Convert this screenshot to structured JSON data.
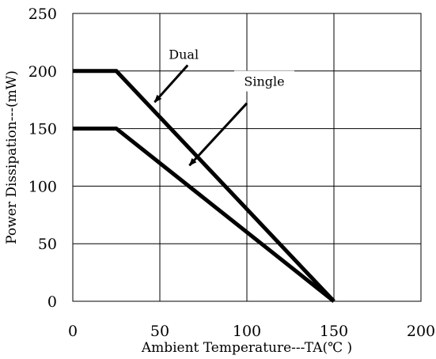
{
  "chart_data": {
    "type": "line",
    "title": "",
    "xlabel": "Ambient Temperature---TA(℃ )",
    "ylabel": "Power Dissipation---(mW)",
    "xlim": [
      0,
      200
    ],
    "ylim": [
      0,
      250
    ],
    "x_ticks": [
      "0",
      "50",
      "100",
      "150",
      "200"
    ],
    "y_ticks": [
      "0",
      "50",
      "100",
      "150",
      "200",
      "250"
    ],
    "grid": true,
    "legend": "none",
    "series": [
      {
        "name": "Dual",
        "points": [
          [
            0,
            200
          ],
          [
            25,
            200
          ],
          [
            150,
            0
          ]
        ]
      },
      {
        "name": "Single",
        "points": [
          [
            0,
            150
          ],
          [
            25,
            150
          ],
          [
            150,
            0
          ]
        ]
      }
    ],
    "annotations": [
      {
        "text": "Dual",
        "arrow_tail": [
          66,
          205
        ],
        "arrow_head": [
          47,
          173
        ]
      },
      {
        "text": "Single",
        "arrow_tail": [
          100,
          172
        ],
        "arrow_head": [
          67,
          118
        ]
      }
    ]
  }
}
